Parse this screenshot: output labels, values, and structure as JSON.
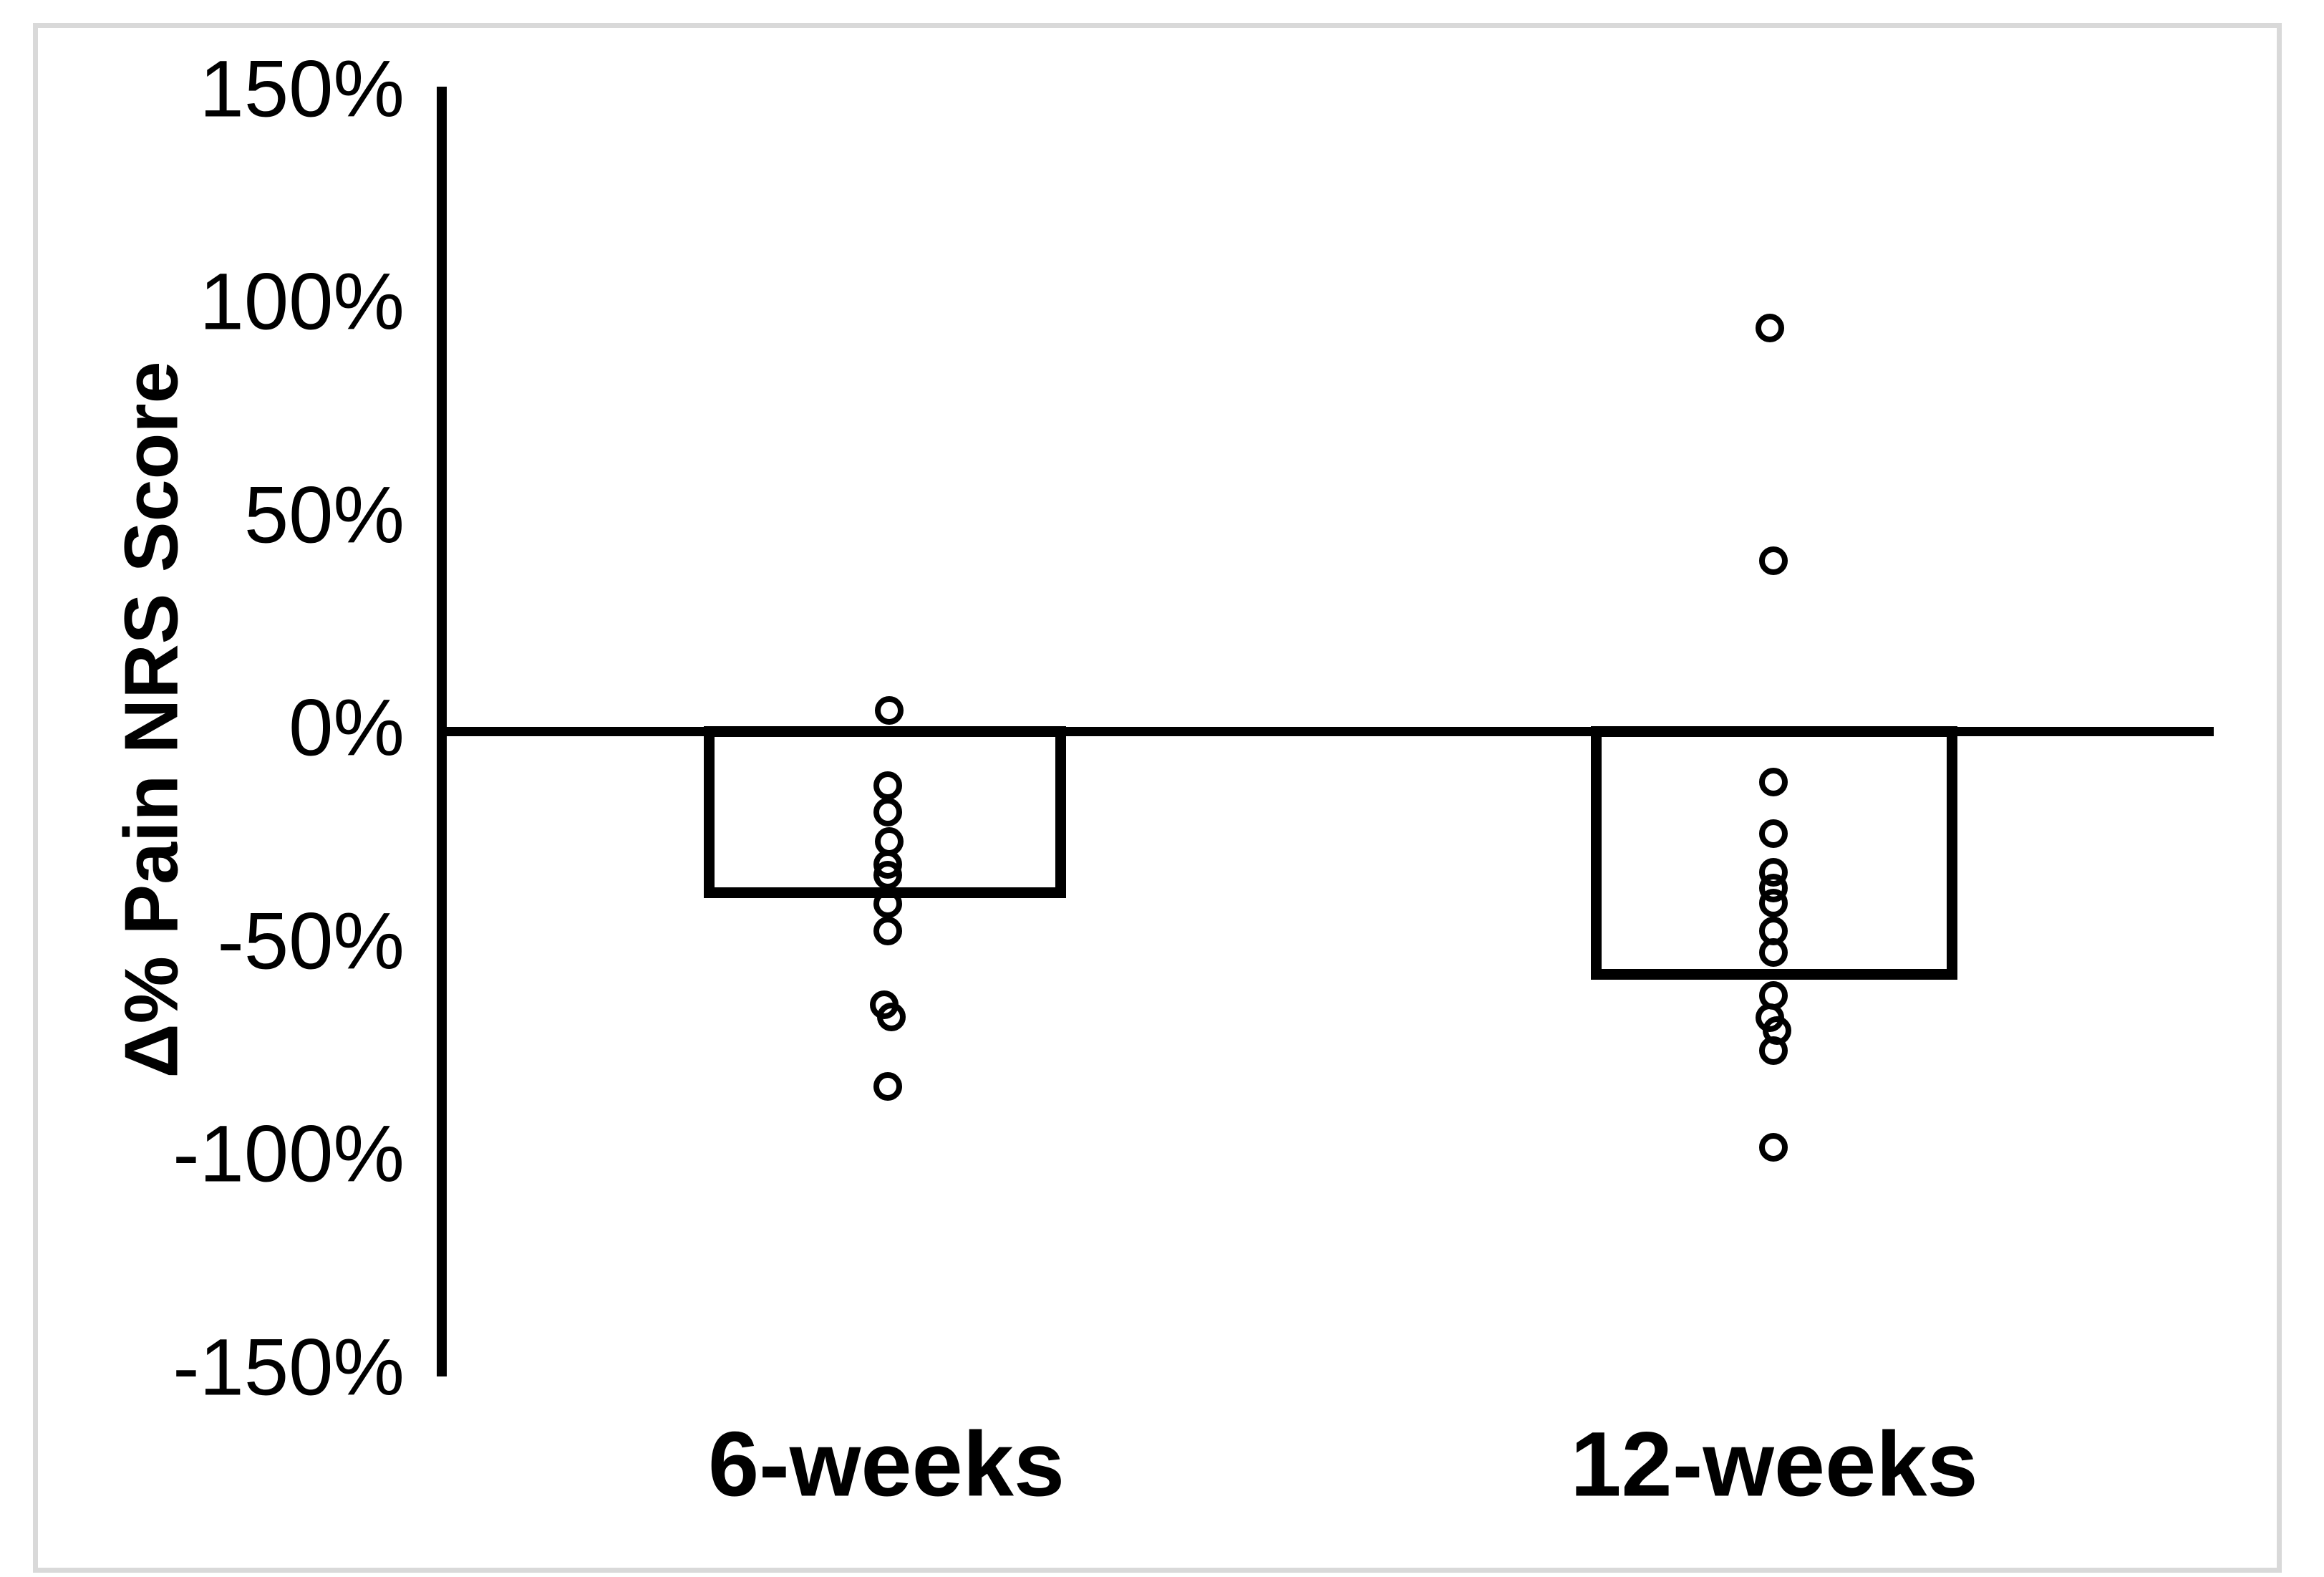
{
  "figure": {
    "background_color": "#ffffff",
    "frame_color": "#d9d9d9",
    "ink_color": "#000000"
  },
  "chart_data": {
    "type": "bar",
    "overlay": "scatter",
    "title": "",
    "xlabel": "",
    "ylabel": "Δ% Pain NRS Score",
    "ylim": [
      -150,
      150
    ],
    "grid": "off",
    "legend": "none",
    "bar_fill": "#ffffff",
    "bar_outline": "#000000",
    "marker": "open-circle",
    "y_ticks": [
      {
        "label": "150%",
        "value": 150
      },
      {
        "label": "100%",
        "value": 100
      },
      {
        "label": "50%",
        "value": 50
      },
      {
        "label": "0%",
        "value": 0
      },
      {
        "label": "-50%",
        "value": -50
      },
      {
        "label": "-100%",
        "value": -100
      },
      {
        "label": "-150%",
        "value": -150
      }
    ],
    "categories": [
      "6-weeks",
      "12-weeks"
    ],
    "series": [
      {
        "name": "bar-mean-percent-change",
        "values": [
          -37.8,
          -56.9
        ]
      }
    ],
    "scatter_points": [
      {
        "category": "6-weeks",
        "values": [
          4.8,
          -12.7,
          -19.0,
          -25.9,
          -31.2,
          -33.7,
          -40.5,
          -46.9,
          -64.2,
          -67.1,
          -83.4
        ],
        "dx": [
          2,
          0,
          0,
          2,
          0,
          0,
          0,
          0,
          -5,
          5,
          0
        ]
      },
      {
        "category": "12-weeks",
        "values": [
          94.6,
          40.0,
          -12.0,
          -24.1,
          -33.1,
          -36.8,
          -40.3,
          -46.9,
          -51.9,
          -62.0,
          -67.3,
          -70.2,
          -74.9,
          -97.6
        ],
        "dx": [
          -5,
          0,
          0,
          0,
          0,
          0,
          0,
          0,
          0,
          0,
          -5,
          5,
          0,
          0
        ]
      }
    ]
  }
}
